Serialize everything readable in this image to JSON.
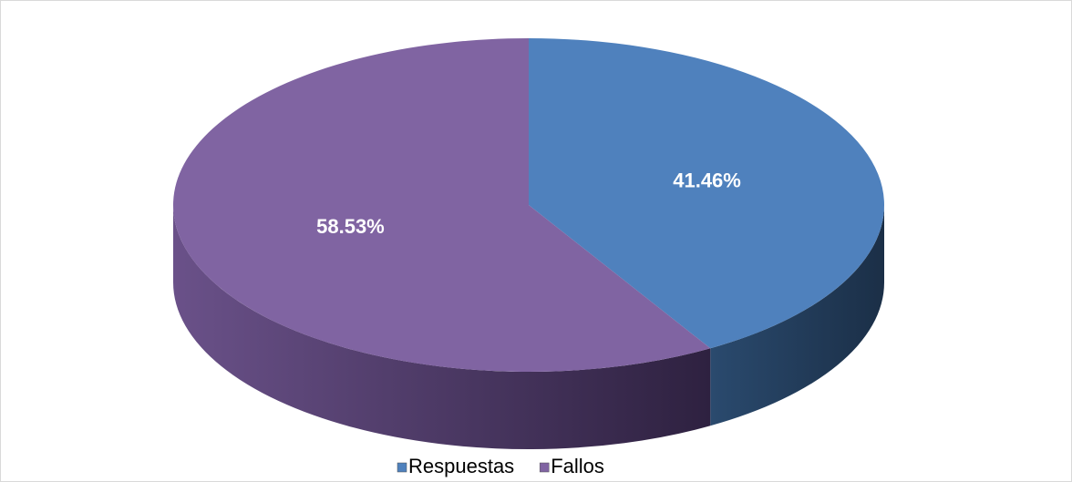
{
  "chart_data": {
    "type": "pie",
    "categories": [
      "Respuestas",
      "Fallos"
    ],
    "values": [
      41.46,
      58.53
    ],
    "value_labels": [
      "41.46%",
      "58.53%"
    ],
    "colors": [
      "#4f81bd",
      "#8064a2"
    ],
    "legend": "bottom"
  }
}
